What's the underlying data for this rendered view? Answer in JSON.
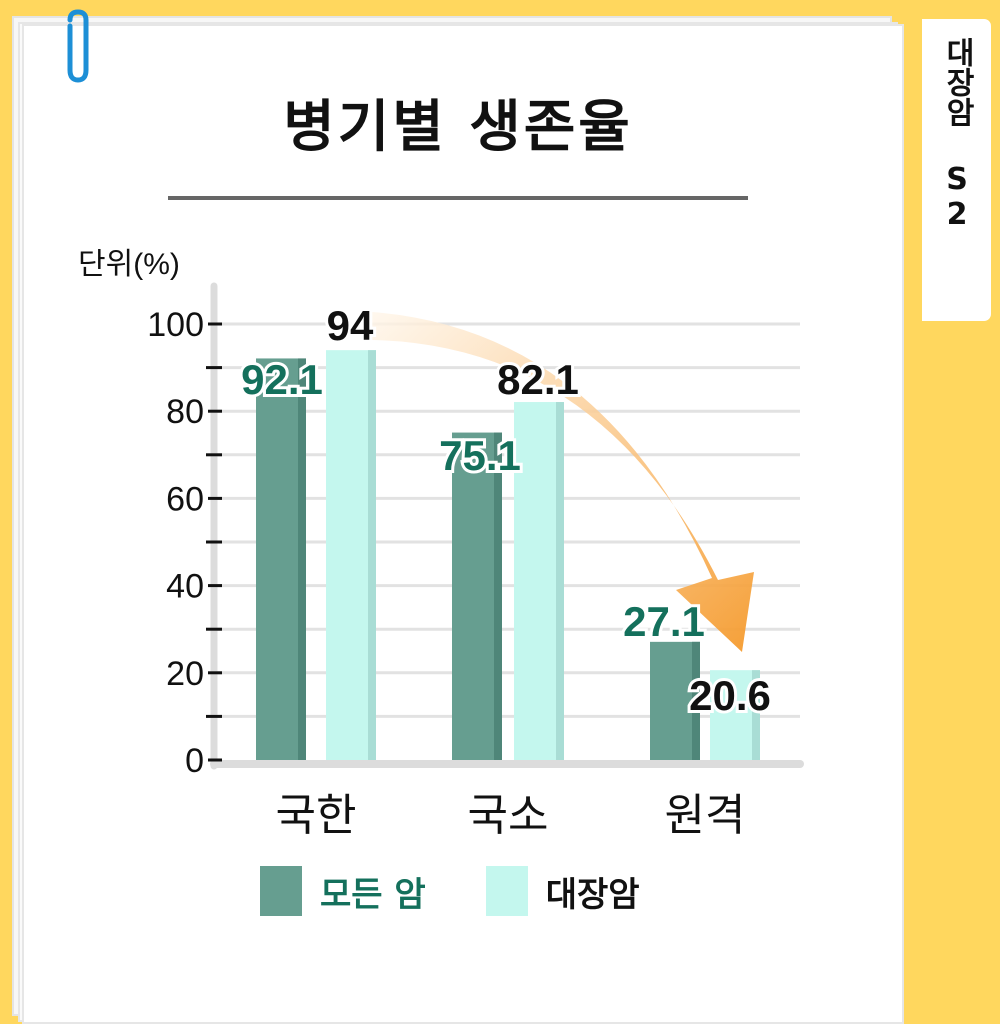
{
  "side_tab": {
    "label": "대장암 S2"
  },
  "chart_data": {
    "type": "bar",
    "title": "병기별 생존율",
    "unit_label": "단위(%)",
    "categories": [
      "국한",
      "국소",
      "원격"
    ],
    "series": [
      {
        "name": "모든 암",
        "values": [
          92.1,
          75.1,
          27.1
        ],
        "color": "#669e90",
        "label_color": "#14705c"
      },
      {
        "name": "대장암",
        "values": [
          94,
          82.1,
          20.6
        ],
        "color": "#c4f7ee",
        "label_color": "#111111"
      }
    ],
    "ylim": [
      0,
      100
    ],
    "yticks": [
      0,
      20,
      40,
      60,
      80,
      100
    ],
    "grid": true,
    "legend_position": "bottom",
    "arrow_color": "#f59a2c"
  }
}
